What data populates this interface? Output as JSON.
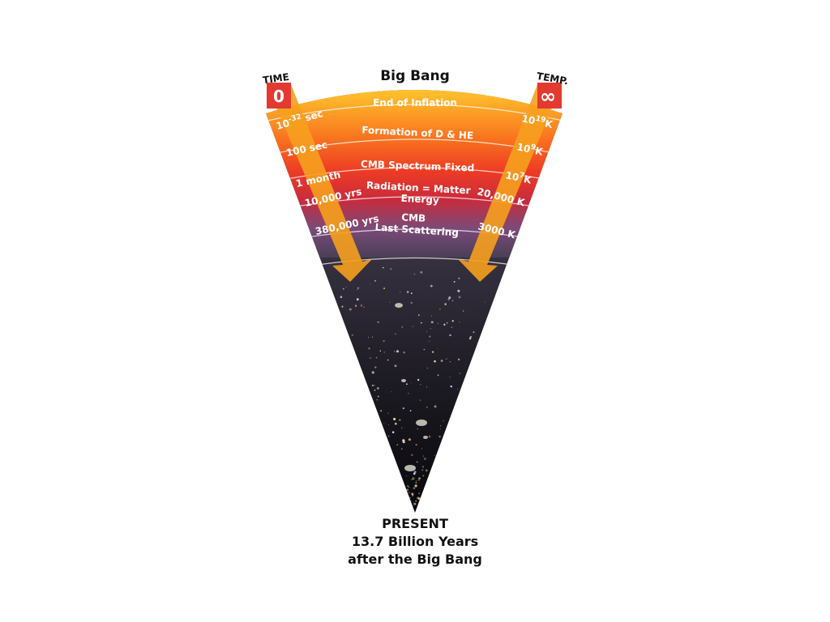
{
  "title": "Big Bang",
  "time_header": "TIME",
  "temp_header": "TEMP.",
  "time_start": "0",
  "temp_start": "∞",
  "eras": [
    {
      "event": "End of Inflation",
      "time_base": "10",
      "time_exp": "-32",
      "time_unit": " sec",
      "temp_base": "10",
      "temp_exp": "19",
      "temp_unit": "K"
    },
    {
      "event": "Formation of D & HE",
      "time": "100 sec",
      "temp_base": "10",
      "temp_exp": "9",
      "temp_unit": "K"
    },
    {
      "event": "CMB Spectrum Fixed",
      "time": "1 month",
      "temp_base": "10",
      "temp_exp": "7",
      "temp_unit": "K"
    },
    {
      "event_lines": [
        "Radiation = Matter",
        "Energy"
      ],
      "time": "10,000 yrs",
      "temp": "20,000 K"
    },
    {
      "event_lines": [
        "CMB",
        "Last Scattering"
      ],
      "time": "380,000 yrs",
      "temp": "3000 K"
    }
  ],
  "present": {
    "line1": "PRESENT",
    "line2": "13.7 Billion Years",
    "line3": "after the Big Bang"
  }
}
